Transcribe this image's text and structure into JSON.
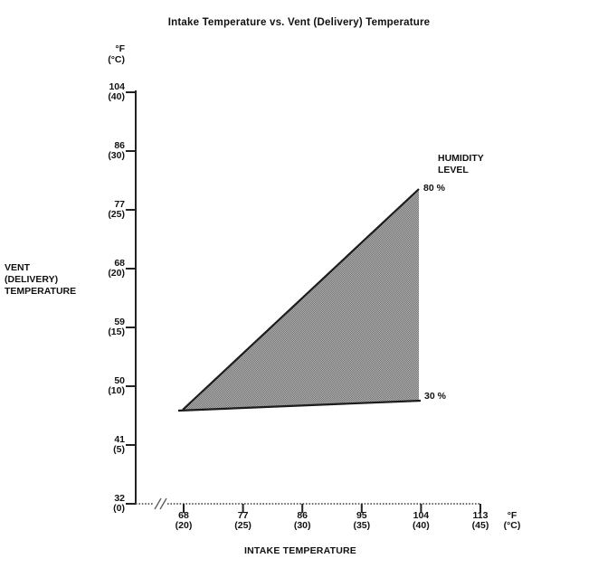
{
  "title": "Intake Temperature vs. Vent (Delivery) Temperature",
  "colors": {
    "background": "#ffffff",
    "text": "#111111",
    "axis": "#222222",
    "dotted_axis": "#5a5a5a",
    "region_line": "#1c1c1c",
    "region_fill_light": "#b0b0b0",
    "region_fill_dark": "#757575"
  },
  "y_axis": {
    "unit_lines": [
      "°F",
      "(°C)"
    ],
    "title_lines": [
      "VENT",
      "(DELIVERY)",
      "TEMPERATURE"
    ],
    "ticks": [
      [
        "104",
        "(40)"
      ],
      [
        "86",
        "(30)"
      ],
      [
        "77",
        "(25)"
      ],
      [
        "68",
        "(20)"
      ],
      [
        "59",
        "(15)"
      ],
      [
        "50",
        "(10)"
      ],
      [
        "41",
        "(5)"
      ],
      [
        "32",
        "(0)"
      ]
    ]
  },
  "x_axis": {
    "title": "INTAKE TEMPERATURE",
    "unit_lines": [
      "°F",
      "(°C)"
    ],
    "ticks": [
      [
        "68",
        "(20)"
      ],
      [
        "77",
        "(25)"
      ],
      [
        "86",
        "(30)"
      ],
      [
        "95",
        "(35)"
      ],
      [
        "104",
        "(40)"
      ],
      [
        "113",
        "(45)"
      ]
    ]
  },
  "annotations": {
    "humidity_title_lines": [
      "HUMIDITY",
      "LEVEL"
    ],
    "pct_80": "80 %",
    "pct_30": "30 %"
  },
  "chart_data": {
    "type": "area",
    "title": "Intake Temperature vs. Vent (Delivery) Temperature",
    "xlabel": "INTAKE TEMPERATURE",
    "ylabel": "VENT (DELIVERY) TEMPERATURE",
    "x_unit": "°F (°C)",
    "y_unit": "°F (°C)",
    "x_tick_values_f": [
      68,
      77,
      86,
      95,
      104,
      113
    ],
    "x_tick_values_c": [
      20,
      25,
      30,
      35,
      40,
      45
    ],
    "y_tick_values_f": [
      32,
      41,
      50,
      59,
      68,
      77,
      86,
      104
    ],
    "y_tick_values_c": [
      0,
      5,
      10,
      15,
      20,
      25,
      30,
      40
    ],
    "legend_title": "HUMIDITY LEVEL",
    "series": [
      {
        "name": "80 % humidity",
        "label": "80 %",
        "x_f": [
          68,
          104
        ],
        "y_f": [
          46,
          80
        ],
        "approx": true
      },
      {
        "name": "30 % humidity",
        "label": "30 %",
        "x_f": [
          68,
          104
        ],
        "y_f": [
          46,
          48
        ],
        "approx": true
      }
    ],
    "region_vertices_f": [
      [
        68,
        46
      ],
      [
        104,
        80
      ],
      [
        104,
        48
      ]
    ],
    "grid": false,
    "notes": "Gray dithered region is filled between the 30 % and 80 % humidity lines; y-axis tick labels skip 95 (35); x-axis drawn dotted with a break symbol near the origin."
  }
}
